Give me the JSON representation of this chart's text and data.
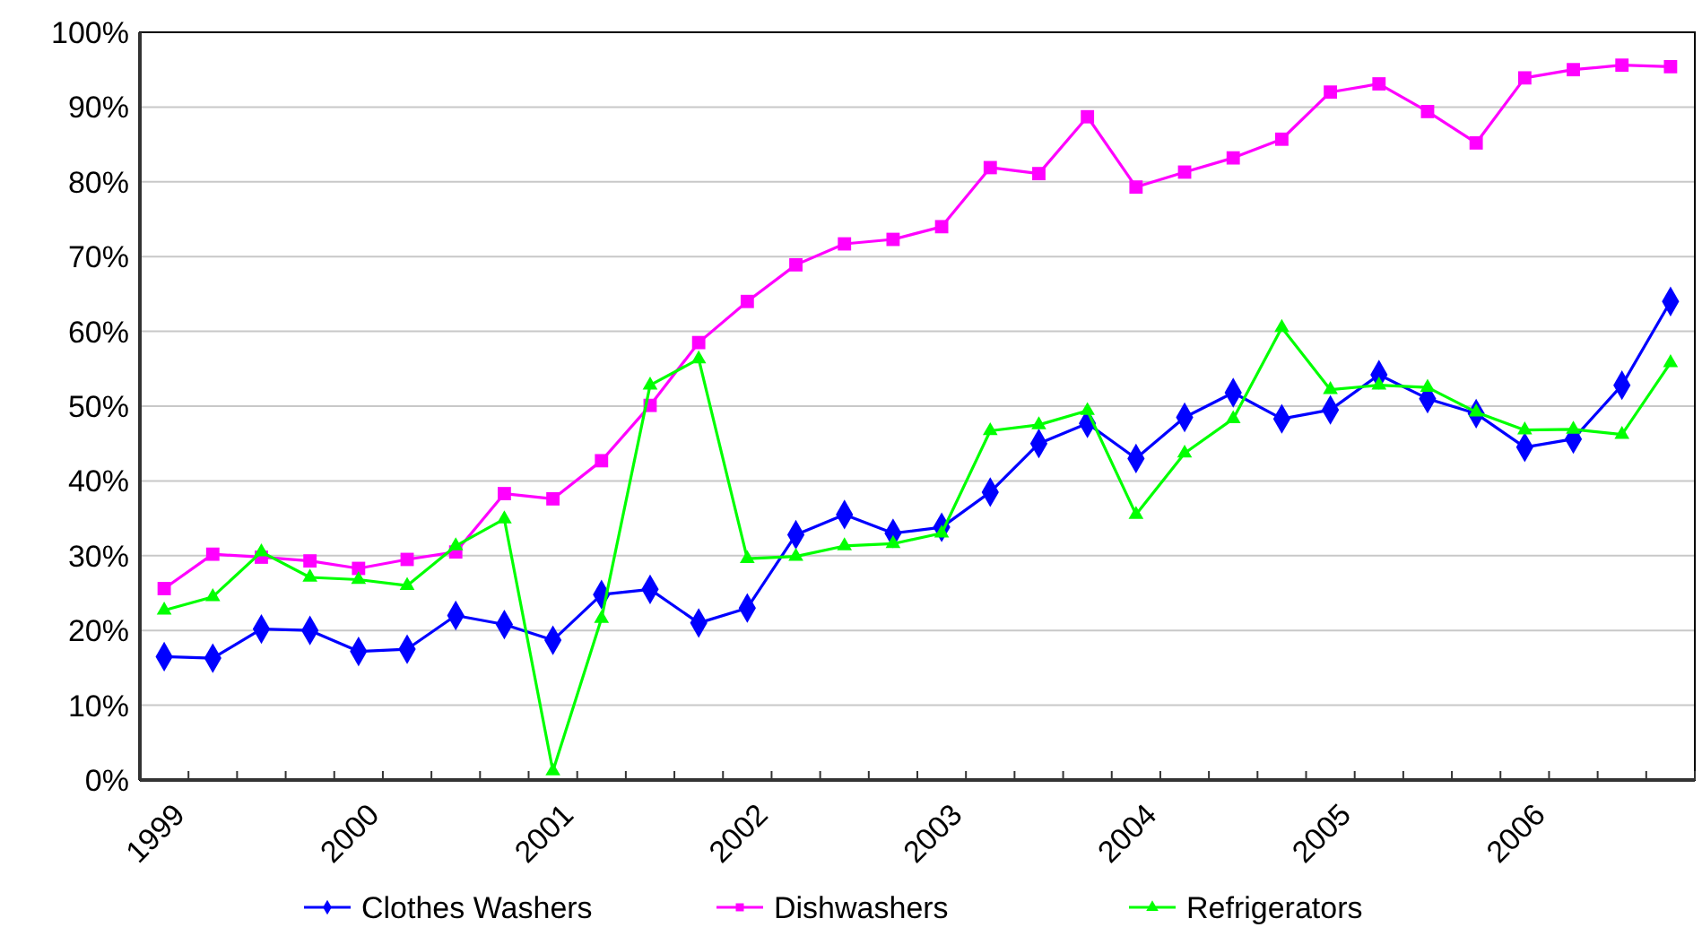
{
  "chart_data": {
    "type": "line",
    "categories": [
      "1999",
      null,
      null,
      null,
      "2000",
      null,
      null,
      null,
      "2001",
      null,
      null,
      null,
      "2002",
      null,
      null,
      null,
      "2003",
      null,
      null,
      null,
      "2004",
      null,
      null,
      null,
      "2005",
      null,
      null,
      null,
      "2006",
      null,
      null,
      null
    ],
    "series": [
      {
        "name": "Clothes Washers",
        "color": "#0000ff",
        "marker": "diamond",
        "values": [
          16.5,
          16.3,
          20.2,
          20.0,
          17.2,
          17.5,
          22.0,
          20.8,
          18.7,
          24.8,
          25.5,
          21.0,
          23.0,
          32.8,
          35.5,
          33.0,
          33.8,
          38.5,
          45.0,
          47.7,
          43.0,
          48.5,
          51.8,
          48.3,
          49.5,
          54.2,
          51.0,
          49.0,
          44.5,
          45.6,
          52.8,
          64.0
        ]
      },
      {
        "name": "Dishwashers",
        "color": "#ff00ff",
        "marker": "square",
        "values": [
          25.6,
          30.2,
          29.8,
          29.3,
          28.3,
          29.5,
          30.5,
          38.3,
          37.6,
          42.7,
          50.1,
          58.5,
          64.0,
          68.9,
          71.7,
          72.3,
          74.0,
          81.9,
          81.1,
          88.7,
          79.3,
          81.3,
          83.2,
          85.7,
          92.0,
          93.1,
          89.4,
          85.2,
          93.9,
          95.0,
          95.6,
          95.4
        ]
      },
      {
        "name": "Refrigerators",
        "color": "#00ff00",
        "marker": "triangle",
        "values": [
          22.7,
          24.5,
          30.5,
          27.1,
          26.8,
          26.0,
          31.3,
          34.9,
          1.2,
          21.6,
          52.8,
          56.3,
          29.6,
          29.9,
          31.3,
          31.6,
          33.0,
          46.7,
          47.5,
          49.4,
          35.5,
          43.7,
          48.3,
          60.5,
          52.2,
          52.8,
          52.5,
          49.2,
          46.8,
          46.9,
          46.2,
          55.8
        ]
      }
    ],
    "ylim": [
      0,
      100
    ],
    "yticks": [
      {
        "value": 0,
        "label": "0%"
      },
      {
        "value": 10,
        "label": "10%"
      },
      {
        "value": 20,
        "label": "20%"
      },
      {
        "value": 30,
        "label": "30%"
      },
      {
        "value": 40,
        "label": "40%"
      },
      {
        "value": 50,
        "label": "50%"
      },
      {
        "value": 60,
        "label": "60%"
      },
      {
        "value": 70,
        "label": "70%"
      },
      {
        "value": 80,
        "label": "80%"
      },
      {
        "value": 90,
        "label": "90%"
      },
      {
        "value": 100,
        "label": "100%"
      }
    ],
    "grid": "y",
    "legend": "bottom",
    "line_style": "solid"
  }
}
